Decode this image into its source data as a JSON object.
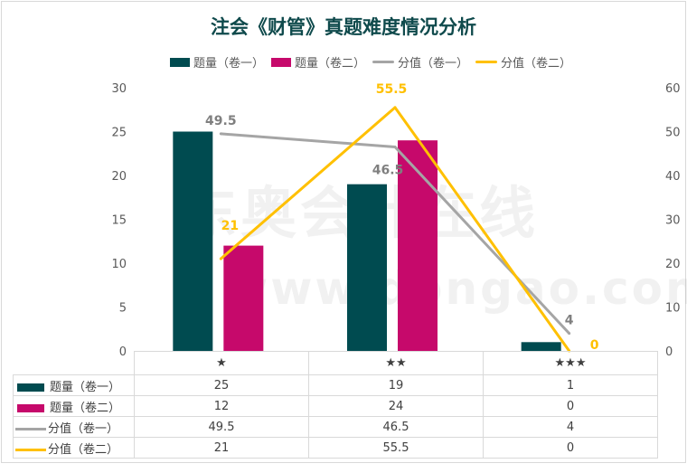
{
  "title": "注会《财管》真题难度情况分析",
  "watermark": {
    "name": "东奥会计在线",
    "url": "www.dongao.com"
  },
  "legend": [
    {
      "label": "题量（卷一）",
      "color": "#004b50",
      "kind": "bar"
    },
    {
      "label": "题量（卷二）",
      "color": "#c6096b",
      "kind": "bar"
    },
    {
      "label": "分值（卷一）",
      "color": "#a5a5a5",
      "kind": "line"
    },
    {
      "label": "分值（卷二）",
      "color": "#ffc000",
      "kind": "line"
    }
  ],
  "chart_data": {
    "type": "bar+line",
    "title": "注会《财管》真题难度情况分析",
    "categories": [
      "★",
      "★★",
      "★★★"
    ],
    "left_axis": {
      "ylim": [
        0,
        30
      ],
      "ticks": [
        0,
        5,
        10,
        15,
        20,
        25,
        30
      ]
    },
    "right_axis": {
      "ylim": [
        0,
        60
      ],
      "ticks": [
        0,
        10,
        20,
        30,
        40,
        50,
        60
      ]
    },
    "grid": false,
    "legend_position": "top",
    "data_table": true,
    "series": [
      {
        "name": "题量（卷一）",
        "type": "bar",
        "axis": "left",
        "color": "#004b50",
        "values": [
          25,
          19,
          1
        ]
      },
      {
        "name": "题量（卷二）",
        "type": "bar",
        "axis": "left",
        "color": "#c6096b",
        "values": [
          12,
          24,
          0
        ]
      },
      {
        "name": "分值（卷一）",
        "type": "line",
        "axis": "right",
        "color": "#a5a5a5",
        "values": [
          49.5,
          46.5,
          4
        ],
        "label_color": "#7f7f7f"
      },
      {
        "name": "分值（卷二）",
        "type": "line",
        "axis": "right",
        "color": "#ffc000",
        "values": [
          21,
          55.5,
          0
        ],
        "label_color": "#ffc000"
      }
    ]
  },
  "table_rows": [
    {
      "label": "题量（卷一）",
      "values": [
        "25",
        "19",
        "1"
      ]
    },
    {
      "label": "题量（卷二）",
      "values": [
        "12",
        "24",
        "0"
      ]
    },
    {
      "label": "分值（卷一）",
      "values": [
        "49.5",
        "46.5",
        "4"
      ]
    },
    {
      "label": "分值（卷二）",
      "values": [
        "21",
        "55.5",
        "0"
      ]
    }
  ]
}
